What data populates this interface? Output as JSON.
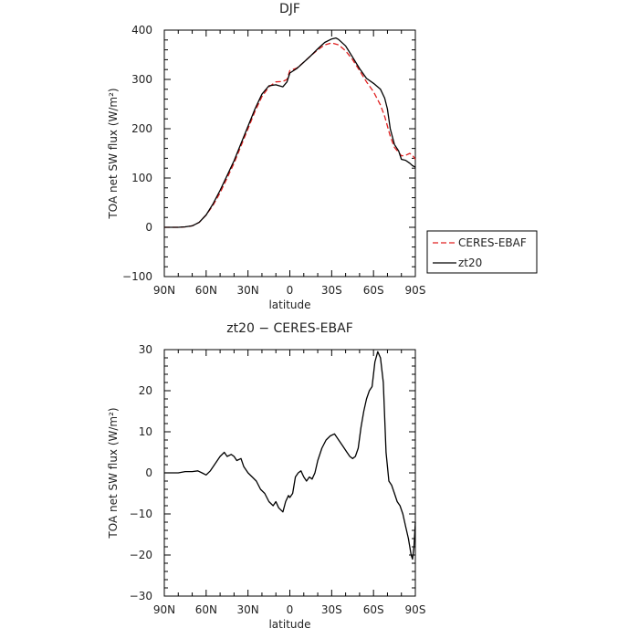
{
  "chart_data": [
    {
      "type": "line",
      "title": "DJF",
      "xlabel": "latitude",
      "ylabel": "TOA net SW flux (W/m²)",
      "xlim": [
        90,
        -90
      ],
      "ylim": [
        -100,
        400
      ],
      "x_ticks": [
        {
          "value": 90,
          "label": "90N"
        },
        {
          "value": 60,
          "label": "60N"
        },
        {
          "value": 30,
          "label": "30N"
        },
        {
          "value": 0,
          "label": "0"
        },
        {
          "value": -30,
          "label": "30S"
        },
        {
          "value": -60,
          "label": "60S"
        },
        {
          "value": -90,
          "label": "90S"
        }
      ],
      "y_ticks": [
        -100,
        0,
        100,
        200,
        300,
        400
      ],
      "legend_placement": "outside-right",
      "series": [
        {
          "name": "CERES-EBAF",
          "color": "#e02020",
          "dash": "dashed",
          "points": [
            [
              90,
              0
            ],
            [
              85,
              0
            ],
            [
              80,
              0
            ],
            [
              75,
              1
            ],
            [
              70,
              3
            ],
            [
              65,
              10
            ],
            [
              60,
              25
            ],
            [
              55,
              45
            ],
            [
              50,
              70
            ],
            [
              45,
              100
            ],
            [
              40,
              130
            ],
            [
              35,
              165
            ],
            [
              30,
              200
            ],
            [
              25,
              235
            ],
            [
              20,
              265
            ],
            [
              15,
              285
            ],
            [
              10,
              295
            ],
            [
              5,
              296
            ],
            [
              2,
              300
            ],
            [
              0,
              318
            ],
            [
              -5,
              323
            ],
            [
              -10,
              335
            ],
            [
              -15,
              348
            ],
            [
              -20,
              360
            ],
            [
              -25,
              370
            ],
            [
              -30,
              374
            ],
            [
              -35,
              370
            ],
            [
              -40,
              358
            ],
            [
              -45,
              340
            ],
            [
              -50,
              318
            ],
            [
              -55,
              295
            ],
            [
              -60,
              275
            ],
            [
              -65,
              248
            ],
            [
              -68,
              225
            ],
            [
              -72,
              185
            ],
            [
              -75,
              162
            ],
            [
              -78,
              152
            ],
            [
              -80,
              145
            ],
            [
              -83,
              146
            ],
            [
              -86,
              150
            ],
            [
              -88,
              146
            ],
            [
              -90,
              138
            ]
          ]
        },
        {
          "name": "zt20",
          "color": "#000000",
          "dash": "solid",
          "points": [
            [
              90,
              0
            ],
            [
              85,
              0
            ],
            [
              80,
              0
            ],
            [
              75,
              1
            ],
            [
              70,
              3
            ],
            [
              65,
              10
            ],
            [
              60,
              25
            ],
            [
              55,
              48
            ],
            [
              50,
              75
            ],
            [
              45,
              105
            ],
            [
              40,
              135
            ],
            [
              35,
              170
            ],
            [
              30,
              205
            ],
            [
              25,
              240
            ],
            [
              20,
              270
            ],
            [
              15,
              287
            ],
            [
              10,
              289
            ],
            [
              5,
              285
            ],
            [
              2,
              295
            ],
            [
              0,
              313
            ],
            [
              -5,
              322
            ],
            [
              -10,
              335
            ],
            [
              -15,
              348
            ],
            [
              -20,
              362
            ],
            [
              -25,
              375
            ],
            [
              -30,
              382
            ],
            [
              -33,
              384
            ],
            [
              -35,
              381
            ],
            [
              -40,
              368
            ],
            [
              -45,
              345
            ],
            [
              -50,
              322
            ],
            [
              -55,
              302
            ],
            [
              -60,
              292
            ],
            [
              -65,
              280
            ],
            [
              -68,
              262
            ],
            [
              -70,
              240
            ],
            [
              -72,
              200
            ],
            [
              -75,
              168
            ],
            [
              -78,
              155
            ],
            [
              -80,
              138
            ],
            [
              -83,
              136
            ],
            [
              -86,
              130
            ],
            [
              -88,
              125
            ],
            [
              -90,
              122
            ]
          ]
        }
      ]
    },
    {
      "type": "line",
      "title": "zt20 − CERES-EBAF",
      "xlabel": "latitude",
      "ylabel": "TOA net SW flux (W/m²)",
      "xlim": [
        90,
        -90
      ],
      "ylim": [
        -30,
        30
      ],
      "x_ticks": [
        {
          "value": 90,
          "label": "90N"
        },
        {
          "value": 60,
          "label": "60N"
        },
        {
          "value": 30,
          "label": "30N"
        },
        {
          "value": 0,
          "label": "0"
        },
        {
          "value": -30,
          "label": "30S"
        },
        {
          "value": -60,
          "label": "60S"
        },
        {
          "value": -90,
          "label": "90S"
        }
      ],
      "y_ticks": [
        -30,
        -20,
        -10,
        0,
        10,
        20,
        30
      ],
      "series": [
        {
          "name": "zt20 − CERES-EBAF",
          "color": "#000000",
          "dash": "solid",
          "points": [
            [
              90,
              0
            ],
            [
              80,
              0
            ],
            [
              75,
              0.3
            ],
            [
              70,
              0.3
            ],
            [
              66,
              0.5
            ],
            [
              63,
              0
            ],
            [
              60,
              -0.5
            ],
            [
              57,
              0.5
            ],
            [
              54,
              2
            ],
            [
              50,
              4
            ],
            [
              47,
              5
            ],
            [
              45,
              4
            ],
            [
              42,
              4.5
            ],
            [
              40,
              4
            ],
            [
              38,
              3
            ],
            [
              35,
              3.5
            ],
            [
              33,
              1.5
            ],
            [
              30,
              0
            ],
            [
              27,
              -1
            ],
            [
              24,
              -2
            ],
            [
              21,
              -4
            ],
            [
              18,
              -5
            ],
            [
              15,
              -7
            ],
            [
              12,
              -8
            ],
            [
              10,
              -7
            ],
            [
              8,
              -8.5
            ],
            [
              5,
              -9.5
            ],
            [
              3,
              -7
            ],
            [
              1,
              -5.5
            ],
            [
              0,
              -6
            ],
            [
              -2,
              -5
            ],
            [
              -4,
              -1
            ],
            [
              -6,
              0
            ],
            [
              -8,
              0.5
            ],
            [
              -10,
              -1
            ],
            [
              -12,
              -2
            ],
            [
              -14,
              -1
            ],
            [
              -16,
              -1.5
            ],
            [
              -18,
              0
            ],
            [
              -20,
              3
            ],
            [
              -23,
              6
            ],
            [
              -26,
              8
            ],
            [
              -29,
              9
            ],
            [
              -32,
              9.5
            ],
            [
              -35,
              8
            ],
            [
              -38,
              6.5
            ],
            [
              -41,
              5
            ],
            [
              -43,
              4
            ],
            [
              -45,
              3.5
            ],
            [
              -47,
              4
            ],
            [
              -49,
              6
            ],
            [
              -51,
              11
            ],
            [
              -53,
              15
            ],
            [
              -55,
              18
            ],
            [
              -57,
              20
            ],
            [
              -59,
              21
            ],
            [
              -61,
              27
            ],
            [
              -63,
              29.5
            ],
            [
              -65,
              28
            ],
            [
              -67,
              22
            ],
            [
              -69,
              5
            ],
            [
              -71,
              -2
            ],
            [
              -73,
              -3
            ],
            [
              -75,
              -5
            ],
            [
              -77,
              -7
            ],
            [
              -79,
              -8
            ],
            [
              -81,
              -10
            ],
            [
              -83,
              -13
            ],
            [
              -85,
              -16
            ],
            [
              -87,
              -20
            ],
            [
              -88,
              -21
            ],
            [
              -89,
              -18
            ],
            [
              -90,
              -12
            ]
          ]
        }
      ]
    }
  ],
  "legend": {
    "items": [
      {
        "label": "CERES-EBAF",
        "color": "#e02020",
        "dash": "dashed"
      },
      {
        "label": "zt20",
        "color": "#000000",
        "dash": "solid"
      }
    ]
  }
}
